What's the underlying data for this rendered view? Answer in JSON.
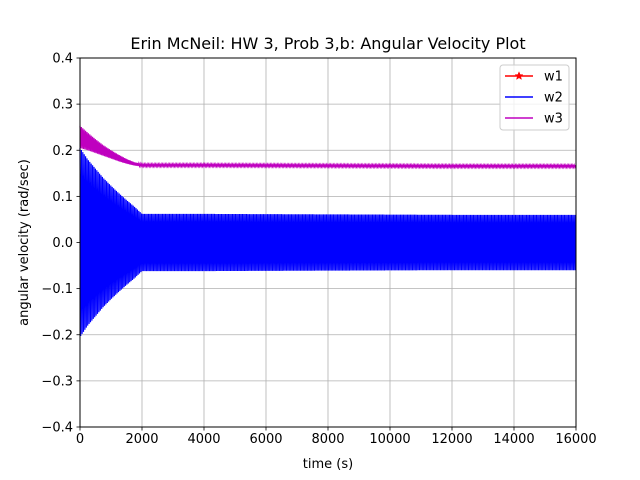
{
  "chart_data": {
    "type": "line",
    "title": "Erin McNeil: HW 3, Prob 3,b: Angular Velocity Plot",
    "xlabel": "time (s)",
    "ylabel": "angular velocity (rad/sec)",
    "xlim": [
      0,
      16000
    ],
    "ylim": [
      -0.4,
      0.4
    ],
    "xticks": [
      0,
      2000,
      4000,
      6000,
      8000,
      10000,
      12000,
      14000,
      16000
    ],
    "xtick_labels": [
      "0",
      "2000",
      "4000",
      "6000",
      "8000",
      "10000",
      "12000",
      "14000",
      "16000"
    ],
    "yticks": [
      -0.4,
      -0.3,
      -0.2,
      -0.1,
      0.0,
      0.1,
      0.2,
      0.3,
      0.4
    ],
    "ytick_labels": [
      "−0.4",
      "−0.3",
      "−0.2",
      "−0.1",
      "0.0",
      "0.1",
      "0.2",
      "0.3",
      "0.4"
    ],
    "grid": true,
    "legend_position": "top-right",
    "series": [
      {
        "name": "w1",
        "color": "#ff0000",
        "marker": "star",
        "style": "line",
        "x": [
          0,
          16000
        ],
        "y": [
          0,
          0
        ]
      },
      {
        "name": "w2",
        "color": "#0000ff",
        "style": "oscillation-envelope",
        "x": [
          0,
          250,
          500,
          750,
          1000,
          1250,
          1500,
          1750,
          2000,
          4000,
          8000,
          12000,
          16000
        ],
        "upper": [
          0.205,
          0.18,
          0.16,
          0.14,
          0.123,
          0.107,
          0.092,
          0.078,
          0.062,
          0.062,
          0.061,
          0.06,
          0.06
        ],
        "lower": [
          -0.205,
          -0.18,
          -0.16,
          -0.14,
          -0.123,
          -0.107,
          -0.092,
          -0.078,
          -0.062,
          -0.062,
          -0.061,
          -0.06,
          -0.06
        ]
      },
      {
        "name": "w3",
        "color": "#bf00bf",
        "style": "oscillation-envelope",
        "x": [
          0,
          250,
          500,
          750,
          1000,
          1250,
          1500,
          1750,
          2000,
          4000,
          8000,
          12000,
          16000
        ],
        "upper": [
          0.253,
          0.238,
          0.224,
          0.211,
          0.2,
          0.19,
          0.181,
          0.174,
          0.17,
          0.17,
          0.169,
          0.168,
          0.168
        ],
        "lower": [
          0.205,
          0.2,
          0.194,
          0.188,
          0.182,
          0.176,
          0.171,
          0.167,
          0.165,
          0.165,
          0.164,
          0.163,
          0.163
        ]
      }
    ]
  }
}
